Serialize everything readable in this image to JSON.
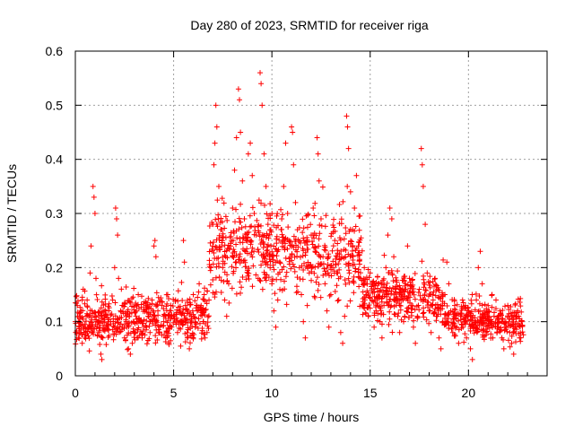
{
  "chart_data": {
    "type": "scatter",
    "title": "Day 280 of 2023, SRMTID for receiver riga",
    "xlabel": "GPS time / hours",
    "ylabel": "SRMTID / TECUs",
    "xlim": [
      0,
      24
    ],
    "ylim": [
      0,
      0.6
    ],
    "xticks": [
      0,
      5,
      10,
      15,
      20
    ],
    "yticks": [
      0,
      0.1,
      0.2,
      0.3,
      0.4,
      0.5,
      0.6
    ],
    "xtick_labels": [
      "0",
      "5",
      "10",
      "15",
      "20"
    ],
    "ytick_labels": [
      "0",
      "0.1",
      "0.2",
      "0.3",
      "0.4",
      "0.5",
      "0.6"
    ],
    "grid": true,
    "marker": "+",
    "color": "#ff0000",
    "series": [
      {
        "name": "SRMTID",
        "points": [
          [
            0.0,
            0.1
          ],
          [
            0.1,
            0.13
          ],
          [
            0.15,
            0.07
          ],
          [
            0.2,
            0.09
          ],
          [
            0.3,
            0.12
          ],
          [
            0.35,
            0.06
          ],
          [
            0.4,
            0.16
          ],
          [
            0.5,
            0.08
          ],
          [
            0.55,
            0.11
          ],
          [
            0.6,
            0.14
          ],
          [
            0.7,
            0.09
          ],
          [
            0.75,
            0.19
          ],
          [
            0.8,
            0.24
          ],
          [
            0.85,
            0.12
          ],
          [
            0.9,
            0.35
          ],
          [
            0.95,
            0.33
          ],
          [
            1.0,
            0.3
          ],
          [
            1.05,
            0.18
          ],
          [
            1.1,
            0.1
          ],
          [
            1.2,
            0.08
          ],
          [
            1.3,
            0.04
          ],
          [
            1.35,
            0.03
          ],
          [
            1.4,
            0.07
          ],
          [
            1.5,
            0.11
          ],
          [
            1.6,
            0.09
          ],
          [
            1.7,
            0.12
          ],
          [
            1.8,
            0.1
          ],
          [
            1.9,
            0.14
          ],
          [
            2.0,
            0.2
          ],
          [
            2.05,
            0.31
          ],
          [
            2.1,
            0.29
          ],
          [
            2.15,
            0.26
          ],
          [
            2.2,
            0.18
          ],
          [
            2.3,
            0.12
          ],
          [
            2.4,
            0.09
          ],
          [
            2.5,
            0.07
          ],
          [
            2.6,
            0.11
          ],
          [
            2.7,
            0.05
          ],
          [
            2.8,
            0.04
          ],
          [
            2.9,
            0.06
          ],
          [
            3.0,
            0.08
          ],
          [
            3.1,
            0.12
          ],
          [
            3.2,
            0.15
          ],
          [
            3.3,
            0.1
          ],
          [
            3.4,
            0.07
          ],
          [
            3.5,
            0.09
          ],
          [
            3.6,
            0.13
          ],
          [
            3.7,
            0.11
          ],
          [
            3.8,
            0.08
          ],
          [
            3.9,
            0.14
          ],
          [
            4.0,
            0.24
          ],
          [
            4.05,
            0.25
          ],
          [
            4.1,
            0.22
          ],
          [
            4.2,
            0.12
          ],
          [
            4.3,
            0.09
          ],
          [
            4.4,
            0.13
          ],
          [
            4.5,
            0.1
          ],
          [
            4.6,
            0.07
          ],
          [
            4.7,
            0.15
          ],
          [
            4.8,
            0.12
          ],
          [
            4.9,
            0.09
          ],
          [
            5.0,
            0.11
          ],
          [
            5.1,
            0.14
          ],
          [
            5.2,
            0.08
          ],
          [
            5.3,
            0.12
          ],
          [
            5.4,
            0.1
          ],
          [
            5.5,
            0.25
          ],
          [
            5.55,
            0.21
          ],
          [
            5.6,
            0.13
          ],
          [
            5.7,
            0.07
          ],
          [
            5.8,
            0.05
          ],
          [
            5.9,
            0.11
          ],
          [
            6.0,
            0.15
          ],
          [
            6.1,
            0.09
          ],
          [
            6.2,
            0.12
          ],
          [
            6.3,
            0.17
          ],
          [
            6.4,
            0.13
          ],
          [
            6.5,
            0.1
          ],
          [
            6.6,
            0.07
          ],
          [
            6.7,
            0.08
          ],
          [
            6.8,
            0.14
          ],
          [
            6.9,
            0.2
          ],
          [
            7.0,
            0.28
          ],
          [
            7.05,
            0.39
          ],
          [
            7.1,
            0.43
          ],
          [
            7.15,
            0.5
          ],
          [
            7.2,
            0.46
          ],
          [
            7.3,
            0.35
          ],
          [
            7.4,
            0.27
          ],
          [
            7.5,
            0.2
          ],
          [
            7.6,
            0.14
          ],
          [
            7.7,
            0.11
          ],
          [
            7.8,
            0.17
          ],
          [
            7.9,
            0.24
          ],
          [
            8.0,
            0.31
          ],
          [
            8.1,
            0.38
          ],
          [
            8.2,
            0.44
          ],
          [
            8.3,
            0.53
          ],
          [
            8.35,
            0.51
          ],
          [
            8.4,
            0.45
          ],
          [
            8.5,
            0.36
          ],
          [
            8.6,
            0.29
          ],
          [
            8.7,
            0.25
          ],
          [
            8.8,
            0.41
          ],
          [
            8.9,
            0.43
          ],
          [
            9.0,
            0.37
          ],
          [
            9.1,
            0.3
          ],
          [
            9.2,
            0.26
          ],
          [
            9.3,
            0.18
          ],
          [
            9.4,
            0.56
          ],
          [
            9.45,
            0.54
          ],
          [
            9.5,
            0.5
          ],
          [
            9.6,
            0.41
          ],
          [
            9.7,
            0.35
          ],
          [
            9.8,
            0.28
          ],
          [
            9.9,
            0.22
          ],
          [
            10.0,
            0.17
          ],
          [
            10.1,
            0.12
          ],
          [
            10.2,
            0.09
          ],
          [
            10.3,
            0.14
          ],
          [
            10.4,
            0.21
          ],
          [
            10.5,
            0.29
          ],
          [
            10.6,
            0.35
          ],
          [
            10.7,
            0.43
          ],
          [
            10.8,
            0.3
          ],
          [
            10.9,
            0.25
          ],
          [
            11.0,
            0.46
          ],
          [
            11.05,
            0.45
          ],
          [
            11.1,
            0.39
          ],
          [
            11.2,
            0.32
          ],
          [
            11.3,
            0.27
          ],
          [
            11.4,
            0.2
          ],
          [
            11.5,
            0.15
          ],
          [
            11.6,
            0.1
          ],
          [
            11.7,
            0.07
          ],
          [
            11.8,
            0.13
          ],
          [
            11.9,
            0.19
          ],
          [
            12.0,
            0.26
          ],
          [
            12.1,
            0.31
          ],
          [
            12.2,
            0.23
          ],
          [
            12.3,
            0.44
          ],
          [
            12.35,
            0.41
          ],
          [
            12.4,
            0.36
          ],
          [
            12.5,
            0.29
          ],
          [
            12.6,
            0.22
          ],
          [
            12.7,
            0.17
          ],
          [
            12.8,
            0.12
          ],
          [
            12.9,
            0.09
          ],
          [
            13.0,
            0.15
          ],
          [
            13.1,
            0.2
          ],
          [
            13.2,
            0.25
          ],
          [
            13.3,
            0.19
          ],
          [
            13.4,
            0.14
          ],
          [
            13.5,
            0.08
          ],
          [
            13.6,
            0.06
          ],
          [
            13.7,
            0.11
          ],
          [
            13.8,
            0.48
          ],
          [
            13.85,
            0.46
          ],
          [
            13.9,
            0.42
          ],
          [
            14.0,
            0.34
          ],
          [
            14.1,
            0.27
          ],
          [
            14.2,
            0.31
          ],
          [
            14.3,
            0.37
          ],
          [
            14.4,
            0.24
          ],
          [
            14.5,
            0.18
          ],
          [
            14.6,
            0.13
          ],
          [
            14.7,
            0.2
          ],
          [
            14.8,
            0.15
          ],
          [
            14.9,
            0.11
          ],
          [
            15.0,
            0.19
          ],
          [
            15.1,
            0.14
          ],
          [
            15.2,
            0.09
          ],
          [
            15.3,
            0.12
          ],
          [
            15.4,
            0.17
          ],
          [
            15.5,
            0.1
          ],
          [
            15.6,
            0.07
          ],
          [
            15.7,
            0.13
          ],
          [
            15.8,
            0.2
          ],
          [
            15.9,
            0.26
          ],
          [
            16.0,
            0.31
          ],
          [
            16.1,
            0.29
          ],
          [
            16.2,
            0.22
          ],
          [
            16.3,
            0.16
          ],
          [
            16.4,
            0.11
          ],
          [
            16.5,
            0.08
          ],
          [
            16.6,
            0.14
          ],
          [
            16.7,
            0.1
          ],
          [
            16.8,
            0.17
          ],
          [
            16.9,
            0.24
          ],
          [
            17.0,
            0.18
          ],
          [
            17.1,
            0.13
          ],
          [
            17.2,
            0.09
          ],
          [
            17.3,
            0.06
          ],
          [
            17.4,
            0.11
          ],
          [
            17.5,
            0.16
          ],
          [
            17.6,
            0.42
          ],
          [
            17.65,
            0.39
          ],
          [
            17.7,
            0.35
          ],
          [
            17.8,
            0.28
          ],
          [
            17.9,
            0.19
          ],
          [
            18.0,
            0.12
          ],
          [
            18.1,
            0.08
          ],
          [
            18.2,
            0.14
          ],
          [
            18.3,
            0.18
          ],
          [
            18.4,
            0.11
          ],
          [
            18.5,
            0.07
          ],
          [
            18.6,
            0.05
          ],
          [
            18.7,
            0.1
          ],
          [
            18.8,
            0.15
          ],
          [
            18.9,
            0.21
          ],
          [
            19.0,
            0.17
          ],
          [
            19.1,
            0.12
          ],
          [
            19.2,
            0.08
          ],
          [
            19.3,
            0.13
          ],
          [
            19.4,
            0.09
          ],
          [
            19.5,
            0.06
          ],
          [
            19.6,
            0.11
          ],
          [
            19.7,
            0.14
          ],
          [
            19.8,
            0.1
          ],
          [
            19.9,
            0.07
          ],
          [
            20.0,
            0.12
          ],
          [
            20.1,
            0.05
          ],
          [
            20.2,
            0.03
          ],
          [
            20.3,
            0.09
          ],
          [
            20.4,
            0.14
          ],
          [
            20.5,
            0.2
          ],
          [
            20.6,
            0.23
          ],
          [
            20.7,
            0.17
          ],
          [
            20.8,
            0.12
          ],
          [
            20.9,
            0.08
          ],
          [
            21.0,
            0.13
          ],
          [
            21.1,
            0.1
          ],
          [
            21.2,
            0.15
          ],
          [
            21.3,
            0.11
          ],
          [
            21.4,
            0.14
          ],
          [
            21.5,
            0.09
          ],
          [
            21.6,
            0.12
          ],
          [
            21.7,
            0.07
          ],
          [
            21.8,
            0.05
          ],
          [
            21.9,
            0.1
          ],
          [
            22.0,
            0.13
          ],
          [
            22.1,
            0.08
          ],
          [
            22.2,
            0.06
          ],
          [
            22.3,
            0.04
          ],
          [
            22.4,
            0.09
          ],
          [
            22.5,
            0.12
          ],
          [
            22.6,
            0.07
          ],
          [
            22.7,
            0.1
          ]
        ],
        "band": {
          "seed": 280,
          "segments": [
            {
              "x": [
                0.0,
                6.8
              ],
              "y_center": [
                0.1,
                0.11
              ],
              "spread": [
                0.03,
                0.06
              ],
              "count": 520
            },
            {
              "x": [
                6.8,
                14.6
              ],
              "y_center": [
                0.24,
                0.22
              ],
              "spread": [
                0.04,
                0.11
              ],
              "count": 560
            },
            {
              "x": [
                14.6,
                18.8
              ],
              "y_center": [
                0.15,
                0.14
              ],
              "spread": [
                0.03,
                0.07
              ],
              "count": 320
            },
            {
              "x": [
                18.8,
                22.8
              ],
              "y_center": [
                0.11,
                0.1
              ],
              "spread": [
                0.02,
                0.05
              ],
              "count": 300
            }
          ]
        }
      }
    ]
  }
}
